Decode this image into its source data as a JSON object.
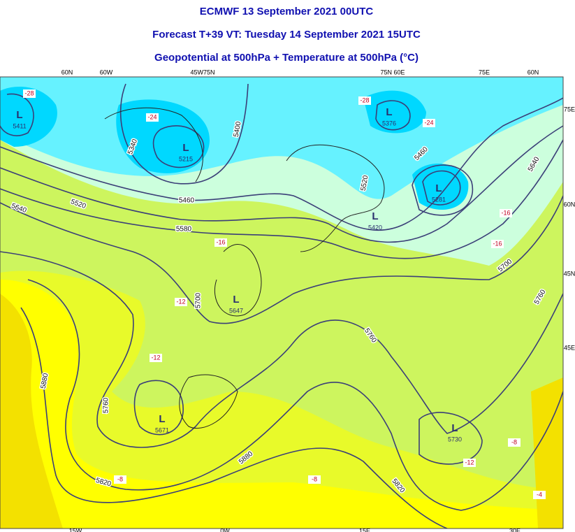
{
  "header": {
    "lines": [
      "ECMWF 13 September 2021 00UTC",
      "Forecast T+39 VT: Tuesday 14 September 2021 15UTC",
      "Geopotential at 500hPa + Temperature at 500hPa (°C)"
    ]
  },
  "map": {
    "top_labels": [
      "60N",
      "60W",
      "45W75N",
      "75N 60E",
      "75E",
      "60N"
    ],
    "right_labels": [
      "75E",
      "60N",
      "45N",
      "45E"
    ],
    "bottom_labels": [
      "15W",
      "0W",
      "15E",
      "30E"
    ],
    "contour_labels": [
      "5340",
      "5400",
      "5460",
      "5520",
      "5580",
      "5640",
      "5700",
      "5760",
      "5820",
      "5880",
      "5880",
      "5820",
      "5760",
      "5700",
      "5760",
      "5640",
      "5460",
      "5520"
    ],
    "lows": [
      {
        "letter": "L",
        "value": "5411"
      },
      {
        "letter": "L",
        "value": "5215"
      },
      {
        "letter": "L",
        "value": "5376"
      },
      {
        "letter": "L",
        "value": "5281"
      },
      {
        "letter": "L",
        "value": "5420"
      },
      {
        "letter": "L",
        "value": "5647"
      },
      {
        "letter": "L",
        "value": "5671"
      },
      {
        "letter": "L",
        "value": "5730"
      }
    ],
    "temperature_labels": [
      "-28",
      "-24",
      "-28",
      "-24",
      "-16",
      "-16",
      "-16",
      "-12",
      "-12",
      "-12",
      "-8",
      "-8",
      "-8",
      "-4"
    ]
  }
}
